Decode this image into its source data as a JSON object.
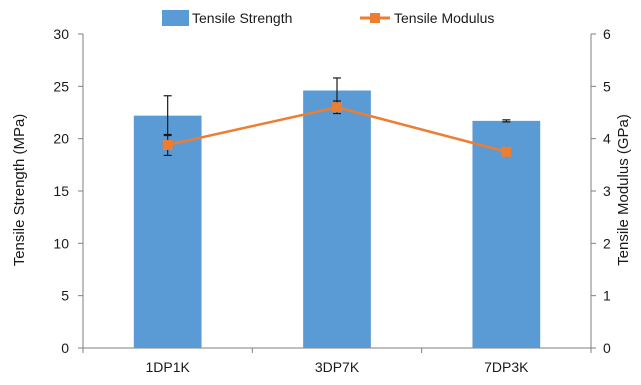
{
  "chart_data": {
    "type": "bar",
    "categories": [
      "1DP1K",
      "3DP7K",
      "7DP3K"
    ],
    "series": [
      {
        "name": "Tensile Strength",
        "type": "bar",
        "axis": "left",
        "values": [
          22.2,
          24.6,
          21.7
        ],
        "error": [
          1.9,
          1.2,
          0.1
        ],
        "color": "#5b9bd5"
      },
      {
        "name": "Tensile Modulus",
        "type": "line",
        "axis": "right",
        "values": [
          3.88,
          4.6,
          3.75
        ],
        "error": [
          0.2,
          0.12,
          0.0
        ],
        "color": "#ed7d31"
      }
    ],
    "ylabel": "Tensile Strength (MPa)",
    "y2label": "Tensile Modulus (GPa)",
    "ylim": [
      0,
      30
    ],
    "y2lim": [
      0,
      6
    ],
    "yticks": [
      "0",
      "5",
      "10",
      "15",
      "20",
      "25",
      "30"
    ],
    "y2ticks": [
      "0",
      "1",
      "2",
      "3",
      "4",
      "5",
      "6"
    ],
    "grid": false,
    "legend_position": "top-center",
    "legend": {
      "bar_label": "Tensile Strength",
      "line_label": "Tensile Modulus"
    }
  }
}
